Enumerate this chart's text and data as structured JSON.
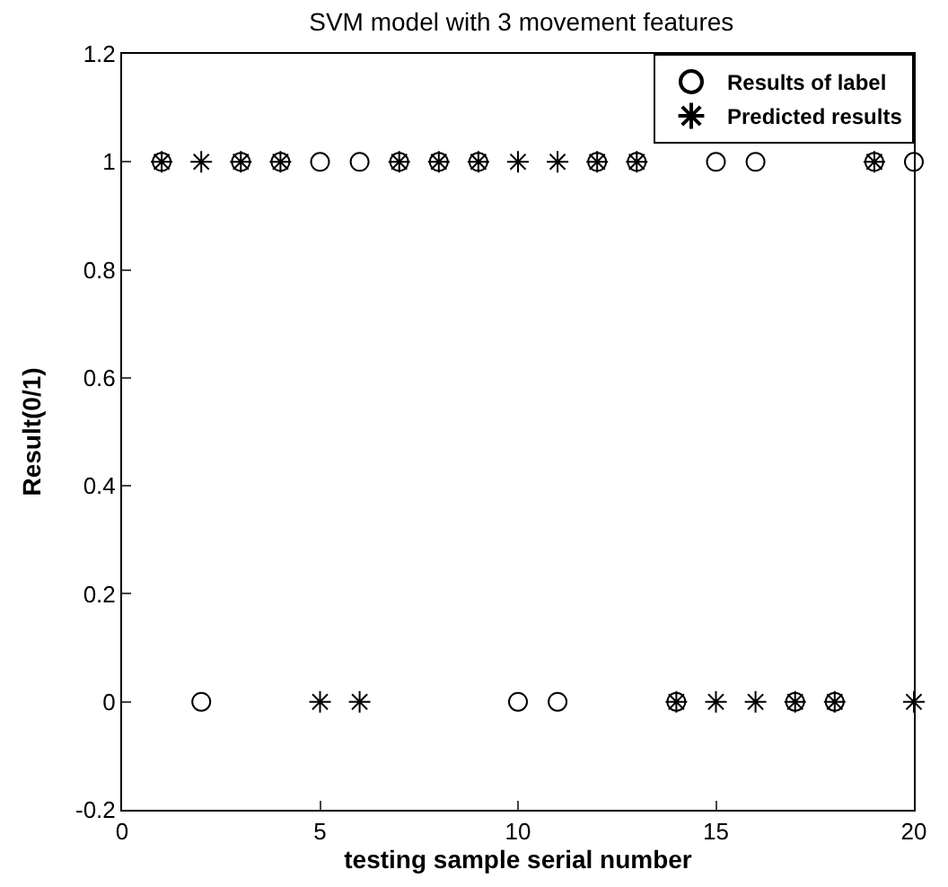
{
  "chart_data": {
    "type": "scatter",
    "title": "SVM model with 3 movement features",
    "xlabel": "testing sample serial number",
    "ylabel": "Result(0/1)",
    "x": [
      1,
      2,
      3,
      4,
      5,
      6,
      7,
      8,
      9,
      10,
      11,
      12,
      13,
      14,
      15,
      16,
      17,
      18,
      19,
      20
    ],
    "series": [
      {
        "name": "Results of label",
        "color": "#000000",
        "marker": "circle",
        "values": [
          1,
          0,
          1,
          1,
          1,
          1,
          1,
          1,
          1,
          0,
          0,
          1,
          1,
          0,
          1,
          1,
          0,
          0,
          1,
          1
        ]
      },
      {
        "name": "Predicted results",
        "color": "#000000",
        "marker": "cross",
        "values": [
          1,
          1,
          1,
          1,
          0,
          0,
          1,
          1,
          1,
          1,
          1,
          1,
          1,
          0,
          0,
          0,
          0,
          0,
          1,
          0
        ]
      }
    ],
    "xlim": [
      0,
      20
    ],
    "xticks": [
      0,
      5,
      10,
      15,
      20
    ],
    "ylim": [
      -0.2,
      1.2
    ],
    "yticks": [
      {
        "value": -0.2,
        "label": "-0.2"
      },
      0,
      0.2,
      0.4,
      0.6,
      0.8,
      1,
      1.2
    ],
    "legend": "top right"
  }
}
